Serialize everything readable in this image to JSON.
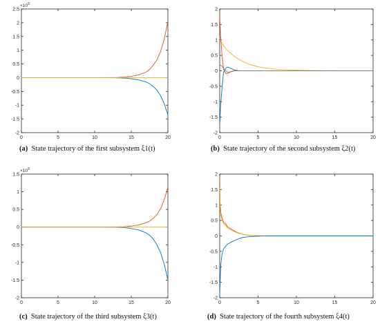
{
  "colors": {
    "series_blue": "#0072BD",
    "series_orange": "#D95319",
    "series_yellow": "#EDB120",
    "series_gray": "#7E7E7E",
    "axis": "#262626"
  },
  "chart_data": [
    {
      "type": "line",
      "panel_letter": "(a)",
      "caption": "State trajectory of the first subsystem ξ1(t)",
      "xlim": [
        0,
        20
      ],
      "ylim": [
        -2,
        2.5
      ],
      "xticks": [
        "0",
        "5",
        "10",
        "15",
        "20"
      ],
      "yticks": [
        "-2",
        "-1.5",
        "-1",
        "-0.5",
        "0",
        "0.5",
        "1",
        "1.5",
        "2",
        "2.5"
      ],
      "y_exponent": "×10^9",
      "series": [
        {
          "color": "orange",
          "x": [
            0,
            10,
            12,
            13,
            14,
            15,
            16,
            17,
            17.5,
            18,
            18.5,
            19,
            19.5,
            20
          ],
          "y": [
            0,
            0,
            0.002,
            0.006,
            0.02,
            0.05,
            0.1,
            0.2,
            0.3,
            0.45,
            0.65,
            0.95,
            1.4,
            2.05
          ]
        },
        {
          "color": "blue",
          "x": [
            0,
            10,
            12,
            13,
            14,
            15,
            16,
            17,
            17.5,
            18,
            18.5,
            19,
            19.5,
            20
          ],
          "y": [
            0,
            0,
            -0.002,
            -0.005,
            -0.015,
            -0.04,
            -0.08,
            -0.15,
            -0.22,
            -0.32,
            -0.45,
            -0.65,
            -0.95,
            -1.35
          ]
        },
        {
          "color": "yellow",
          "x": [
            0,
            20
          ],
          "y": [
            0,
            0
          ]
        }
      ]
    },
    {
      "type": "line",
      "panel_letter": "(b)",
      "caption": "State trajectory of the second subsystem ξ2(t)",
      "xlim": [
        0,
        20
      ],
      "ylim": [
        -2,
        2
      ],
      "xticks": [
        "0",
        "5",
        "10",
        "15",
        "20"
      ],
      "yticks": [
        "-2",
        "-1.5",
        "-1",
        "-0.5",
        "0",
        "0.5",
        "1",
        "1.5",
        "2"
      ],
      "y_exponent": "",
      "series": [
        {
          "color": "yellow",
          "x": [
            0,
            0.5,
            1,
            1.5,
            2,
            3,
            4,
            5,
            6,
            7,
            8,
            10,
            12,
            15,
            20
          ],
          "y": [
            1.0,
            0.82,
            0.66,
            0.55,
            0.45,
            0.3,
            0.2,
            0.13,
            0.09,
            0.06,
            0.04,
            0.02,
            0.01,
            0.003,
            0
          ]
        },
        {
          "color": "orange",
          "x": [
            0,
            0.1,
            0.3,
            0.5,
            0.8,
            1.1,
            1.5,
            2,
            2.5,
            3,
            4,
            5,
            20
          ],
          "y": [
            1.8,
            1.2,
            0.5,
            0.05,
            -0.1,
            -0.08,
            -0.02,
            0.01,
            0.005,
            0,
            0,
            0,
            0
          ]
        },
        {
          "color": "blue",
          "x": [
            0,
            0.1,
            0.3,
            0.5,
            0.8,
            1,
            1.3,
            1.6,
            2,
            2.5,
            3,
            4,
            5,
            20
          ],
          "y": [
            -1.8,
            -1.2,
            -0.55,
            -0.05,
            0.09,
            0.12,
            0.1,
            0.06,
            0.02,
            0,
            0,
            0,
            0,
            0
          ]
        },
        {
          "color": "gray",
          "x": [
            0,
            0.3,
            0.6,
            1,
            1.5,
            2,
            3,
            20
          ],
          "y": [
            0.2,
            0.15,
            0.05,
            -0.05,
            -0.03,
            0,
            0,
            0
          ]
        }
      ]
    },
    {
      "type": "line",
      "panel_letter": "(c)",
      "caption": "State trajectory of the third subsystem ξ3(t)",
      "xlim": [
        0,
        20
      ],
      "ylim": [
        -2,
        1.5
      ],
      "xticks": [
        "0",
        "5",
        "10",
        "15",
        "20"
      ],
      "yticks": [
        "-2",
        "-1.5",
        "-1",
        "-0.5",
        "0",
        "0.5",
        "1",
        "1.5"
      ],
      "y_exponent": "×10^9",
      "series": [
        {
          "color": "orange",
          "x": [
            0,
            10,
            12,
            13,
            14,
            15,
            16,
            17,
            17.5,
            18,
            18.5,
            19,
            19.5,
            20
          ],
          "y": [
            0,
            0,
            0.001,
            0.004,
            0.01,
            0.03,
            0.06,
            0.12,
            0.17,
            0.25,
            0.35,
            0.52,
            0.78,
            1.12
          ]
        },
        {
          "color": "blue",
          "x": [
            0,
            10,
            12,
            13,
            14,
            15,
            16,
            17,
            17.5,
            18,
            18.5,
            19,
            19.5,
            20
          ],
          "y": [
            0,
            0,
            -0.001,
            -0.005,
            -0.015,
            -0.04,
            -0.08,
            -0.16,
            -0.23,
            -0.34,
            -0.5,
            -0.72,
            -1.05,
            -1.5
          ]
        },
        {
          "color": "yellow",
          "x": [
            0,
            20
          ],
          "y": [
            0,
            0
          ]
        }
      ]
    },
    {
      "type": "line",
      "panel_letter": "(d)",
      "caption": "State trajectory of the fourth subsystem ξ4(t)",
      "xlim": [
        0,
        20
      ],
      "ylim": [
        -2,
        2
      ],
      "xticks": [
        "0",
        "5",
        "10",
        "15",
        "20"
      ],
      "yticks": [
        "-2",
        "-1.5",
        "-1",
        "-0.5",
        "0",
        "0.5",
        "1",
        "1.5",
        "2"
      ],
      "y_exponent": "",
      "series": [
        {
          "color": "orange",
          "x": [
            0,
            0.05,
            0.15,
            0.3,
            0.5,
            0.8,
            1,
            1.5,
            2,
            2.5,
            3,
            3.5,
            4,
            5,
            6,
            20
          ],
          "y": [
            1.9,
            1.1,
            0.75,
            0.6,
            0.45,
            0.38,
            0.3,
            0.22,
            0.15,
            0.09,
            0.05,
            0.03,
            0.015,
            0.005,
            0,
            0
          ]
        },
        {
          "color": "yellow",
          "x": [
            0,
            0.05,
            0.15,
            0.3,
            0.5,
            0.8,
            1,
            1.5,
            2,
            2.5,
            3,
            4,
            5,
            6,
            20
          ],
          "y": [
            1.6,
            0.95,
            0.65,
            0.52,
            0.4,
            0.33,
            0.26,
            0.19,
            0.13,
            0.08,
            0.05,
            0.02,
            0.01,
            0,
            0
          ]
        },
        {
          "color": "blue",
          "x": [
            0,
            0.05,
            0.15,
            0.3,
            0.5,
            0.8,
            1,
            1.5,
            2,
            2.5,
            3,
            4,
            5,
            6,
            20
          ],
          "y": [
            -1.9,
            -1.5,
            -0.9,
            -0.6,
            -0.42,
            -0.33,
            -0.27,
            -0.2,
            -0.14,
            -0.09,
            -0.05,
            -0.02,
            -0.01,
            0,
            0
          ]
        }
      ]
    }
  ]
}
